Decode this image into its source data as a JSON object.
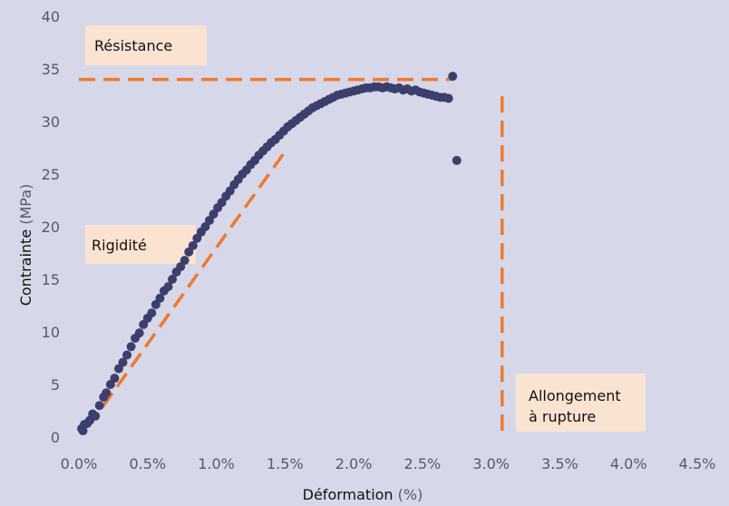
{
  "chart_data": {
    "type": "scatter",
    "xlabel": "Déformation",
    "xlabel_unit": "(%)",
    "ylabel": "Contrainte",
    "ylabel_unit": "(MPa)",
    "xlim": [
      0,
      4.5
    ],
    "ylim": [
      0,
      40
    ],
    "x_ticks": [
      "0.0%",
      "0.5%",
      "1.0%",
      "1.5%",
      "2.0%",
      "2.5%",
      "3.0%",
      "3.5%",
      "4.0%",
      "4.5%"
    ],
    "x_tick_values": [
      0,
      0.5,
      1.0,
      1.5,
      2.0,
      2.5,
      3.0,
      3.5,
      4.0,
      4.5
    ],
    "y_ticks": [
      "0",
      "5",
      "10",
      "15",
      "20",
      "25",
      "30",
      "35",
      "40"
    ],
    "y_tick_values": [
      0,
      5,
      10,
      15,
      20,
      25,
      30,
      35,
      40
    ],
    "grid": false,
    "colors": {
      "points": "#3c3f6b",
      "dashed": "#ee7a2e",
      "annotation_bg": "#fbe3d2",
      "background": "#d6d7e8"
    },
    "series": [
      {
        "values_xy": [
          [
            0.02,
            0.8
          ],
          [
            0.03,
            0.6
          ],
          [
            0.04,
            1.2
          ],
          [
            0.06,
            1.3
          ],
          [
            0.08,
            1.6
          ],
          [
            0.1,
            2.2
          ],
          [
            0.12,
            2.0
          ],
          [
            0.15,
            3.0
          ],
          [
            0.18,
            3.8
          ],
          [
            0.2,
            4.2
          ],
          [
            0.23,
            5.0
          ],
          [
            0.26,
            5.6
          ],
          [
            0.29,
            6.5
          ],
          [
            0.32,
            7.1
          ],
          [
            0.35,
            7.8
          ],
          [
            0.38,
            8.6
          ],
          [
            0.41,
            9.4
          ],
          [
            0.44,
            9.9
          ],
          [
            0.47,
            10.7
          ],
          [
            0.5,
            11.3
          ],
          [
            0.53,
            11.8
          ],
          [
            0.56,
            12.6
          ],
          [
            0.59,
            13.2
          ],
          [
            0.62,
            13.9
          ],
          [
            0.65,
            14.3
          ],
          [
            0.68,
            15.0
          ],
          [
            0.71,
            15.7
          ],
          [
            0.74,
            16.2
          ],
          [
            0.77,
            16.8
          ],
          [
            0.8,
            17.6
          ],
          [
            0.83,
            18.2
          ],
          [
            0.86,
            18.9
          ],
          [
            0.89,
            19.5
          ],
          [
            0.92,
            20.0
          ],
          [
            0.95,
            20.6
          ],
          [
            0.98,
            21.2
          ],
          [
            1.01,
            21.8
          ],
          [
            1.04,
            22.3
          ],
          [
            1.07,
            22.9
          ],
          [
            1.1,
            23.4
          ],
          [
            1.13,
            24.0
          ],
          [
            1.16,
            24.5
          ],
          [
            1.19,
            25.0
          ],
          [
            1.22,
            25.4
          ],
          [
            1.25,
            25.9
          ],
          [
            1.28,
            26.3
          ],
          [
            1.31,
            26.8
          ],
          [
            1.34,
            27.2
          ],
          [
            1.37,
            27.6
          ],
          [
            1.4,
            28.0
          ],
          [
            1.43,
            28.3
          ],
          [
            1.46,
            28.7
          ],
          [
            1.49,
            29.1
          ],
          [
            1.52,
            29.5
          ],
          [
            1.55,
            29.8
          ],
          [
            1.58,
            30.1
          ],
          [
            1.61,
            30.4
          ],
          [
            1.64,
            30.7
          ],
          [
            1.67,
            31.0
          ],
          [
            1.7,
            31.3
          ],
          [
            1.73,
            31.5
          ],
          [
            1.76,
            31.7
          ],
          [
            1.79,
            31.9
          ],
          [
            1.82,
            32.1
          ],
          [
            1.85,
            32.3
          ],
          [
            1.88,
            32.5
          ],
          [
            1.91,
            32.6
          ],
          [
            1.94,
            32.7
          ],
          [
            1.97,
            32.8
          ],
          [
            2.0,
            32.9
          ],
          [
            2.03,
            33.0
          ],
          [
            2.06,
            33.1
          ],
          [
            2.09,
            33.2
          ],
          [
            2.12,
            33.2
          ],
          [
            2.15,
            33.3
          ],
          [
            2.18,
            33.3
          ],
          [
            2.21,
            33.2
          ],
          [
            2.24,
            33.3
          ],
          [
            2.27,
            33.2
          ],
          [
            2.3,
            33.1
          ],
          [
            2.33,
            33.2
          ],
          [
            2.36,
            33.0
          ],
          [
            2.39,
            33.1
          ],
          [
            2.42,
            32.9
          ],
          [
            2.45,
            33.0
          ],
          [
            2.48,
            32.8
          ],
          [
            2.51,
            32.7
          ],
          [
            2.54,
            32.6
          ],
          [
            2.57,
            32.5
          ],
          [
            2.6,
            32.4
          ],
          [
            2.63,
            32.3
          ],
          [
            2.66,
            32.3
          ],
          [
            2.69,
            32.2
          ],
          [
            2.72,
            34.3
          ],
          [
            2.75,
            26.3
          ]
        ]
      }
    ],
    "guides": {
      "stiffness_line": [
        [
          0.07,
          1.0
        ],
        [
          1.52,
          27.5
        ]
      ],
      "strength_line": [
        [
          0.0,
          34.0
        ],
        [
          2.72,
          34.0
        ]
      ],
      "rupture_line": [
        [
          3.08,
          32.4
        ],
        [
          3.08,
          0.0
        ]
      ]
    },
    "annotations": [
      {
        "name": "resistance-label",
        "text": "Résistance"
      },
      {
        "name": "rigidite-label",
        "text": "Rigidité"
      },
      {
        "name": "allongement-label",
        "lines": [
          "Allongement",
          "à rupture"
        ]
      }
    ]
  }
}
